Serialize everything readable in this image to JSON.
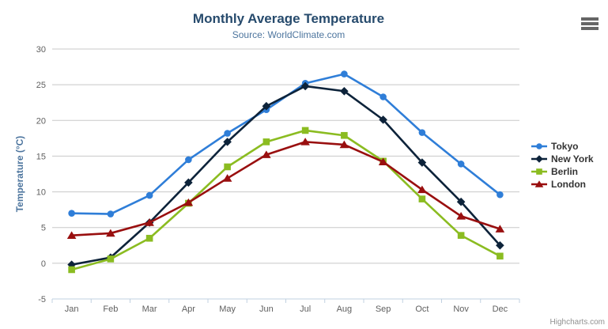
{
  "header": {
    "title": "Monthly Average Temperature",
    "subtitle": "Source: WorldClimate.com"
  },
  "credits": {
    "label": "Highcharts.com"
  },
  "export": {
    "icon": "hamburger-menu-icon"
  },
  "colors": {
    "title_text": "#274b6d",
    "subtitle_text": "#4d759e",
    "axis_title": "#4d759e",
    "tick_label": "#606060",
    "grid_line": "#c8c8c8",
    "axis_line": "#c0d0e0",
    "legend_text": "#333333",
    "credits_text": "#909090",
    "export_icon": "#666666"
  },
  "chart_data": {
    "type": "line",
    "title": "Monthly Average Temperature",
    "subtitle": "Source: WorldClimate.com",
    "xlabel": "",
    "ylabel": "Temperature (°C)",
    "ylim": [
      -5,
      30
    ],
    "yticks": [
      -5,
      0,
      5,
      10,
      15,
      20,
      25,
      30
    ],
    "grid": true,
    "legend_position": "right",
    "categories": [
      "Jan",
      "Feb",
      "Mar",
      "Apr",
      "May",
      "Jun",
      "Jul",
      "Aug",
      "Sep",
      "Oct",
      "Nov",
      "Dec"
    ],
    "series": [
      {
        "name": "Tokyo",
        "color": "#2f7ed8",
        "marker": "circle",
        "values": [
          7.0,
          6.9,
          9.5,
          14.5,
          18.2,
          21.5,
          25.2,
          26.5,
          23.3,
          18.3,
          13.9,
          9.6
        ]
      },
      {
        "name": "New York",
        "color": "#0d233a",
        "marker": "diamond",
        "values": [
          -0.2,
          0.8,
          5.7,
          11.3,
          17.0,
          22.0,
          24.8,
          24.1,
          20.1,
          14.1,
          8.6,
          2.5
        ]
      },
      {
        "name": "Berlin",
        "color": "#8bbc21",
        "marker": "square",
        "values": [
          -0.9,
          0.6,
          3.5,
          8.4,
          13.5,
          17.0,
          18.6,
          17.9,
          14.3,
          9.0,
          3.9,
          1.0
        ]
      },
      {
        "name": "London",
        "color": "#990f0f",
        "marker": "triangle",
        "values": [
          3.9,
          4.2,
          5.7,
          8.5,
          11.9,
          15.2,
          17.0,
          16.6,
          14.2,
          10.3,
          6.6,
          4.8
        ]
      }
    ]
  }
}
